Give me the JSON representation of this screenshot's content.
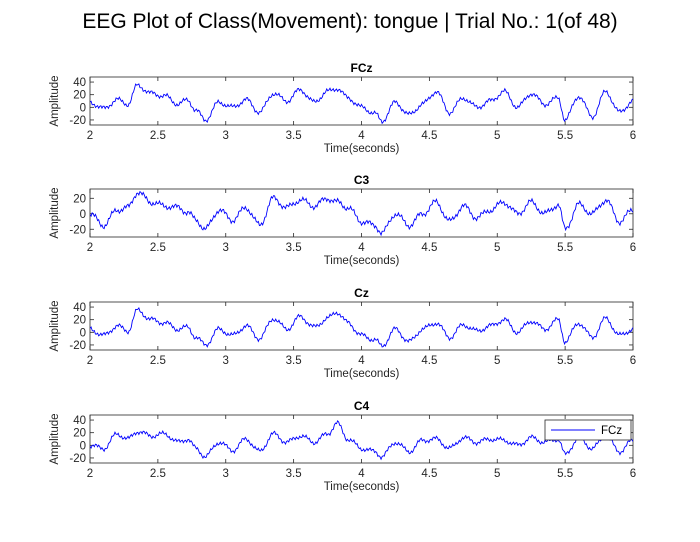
{
  "figure": {
    "title": "EEG Plot of Class(Movement): tongue | Trial No.: 1(of 48)"
  },
  "chart_data": [
    {
      "type": "line",
      "title": "FCz",
      "xlabel": "Time(seconds)",
      "ylabel": "Amplitude",
      "xlim": [
        2,
        6
      ],
      "ylim": [
        -28,
        48
      ],
      "xticks": [
        "2",
        "2.5",
        "3",
        "3.5",
        "4",
        "4.5",
        "5",
        "5.5",
        "6"
      ],
      "yticks": [
        "-20",
        "0",
        "20",
        "40"
      ],
      "series": [
        {
          "color": "#0000ff",
          "x": [
            2.0,
            2.1,
            2.2,
            2.28,
            2.35,
            2.45,
            2.55,
            2.65,
            2.72,
            2.78,
            2.85,
            2.95,
            3.05,
            3.15,
            3.25,
            3.35,
            3.45,
            3.55,
            3.65,
            3.75,
            3.82,
            3.9,
            4.0,
            4.1,
            4.15,
            4.25,
            4.35,
            4.45,
            4.55,
            4.65,
            4.75,
            4.85,
            4.95,
            5.05,
            5.15,
            5.25,
            5.35,
            5.45,
            5.5,
            5.6,
            5.7,
            5.8,
            5.9,
            6.0
          ],
          "y": [
            8,
            -2,
            12,
            5,
            35,
            22,
            18,
            5,
            12,
            -5,
            -20,
            8,
            0,
            12,
            -8,
            22,
            10,
            28,
            8,
            25,
            30,
            15,
            0,
            -10,
            -22,
            8,
            -12,
            5,
            25,
            -8,
            15,
            0,
            10,
            25,
            0,
            22,
            5,
            15,
            -20,
            18,
            -15,
            25,
            -8,
            10
          ]
        }
      ]
    },
    {
      "type": "line",
      "title": "C3",
      "xlabel": "Time(seconds)",
      "ylabel": "Amplitude",
      "xlim": [
        2,
        6
      ],
      "ylim": [
        -30,
        32
      ],
      "xticks": [
        "2",
        "2.5",
        "3",
        "3.5",
        "4",
        "4.5",
        "5",
        "5.5",
        "6"
      ],
      "yticks": [
        "-20",
        "0",
        "20"
      ],
      "series": [
        {
          "color": "#0000ff",
          "x": [
            2.0,
            2.1,
            2.2,
            2.28,
            2.35,
            2.45,
            2.55,
            2.65,
            2.72,
            2.78,
            2.85,
            2.95,
            3.05,
            3.15,
            3.25,
            3.35,
            3.45,
            3.55,
            3.65,
            3.75,
            3.82,
            3.9,
            4.0,
            4.1,
            4.15,
            4.25,
            4.35,
            4.45,
            4.55,
            4.65,
            4.75,
            4.85,
            4.95,
            5.05,
            5.15,
            5.25,
            5.35,
            5.45,
            5.5,
            5.6,
            5.7,
            5.8,
            5.9,
            6.0
          ],
          "y": [
            0,
            -15,
            5,
            8,
            28,
            15,
            10,
            8,
            2,
            -8,
            -20,
            5,
            -8,
            8,
            -15,
            20,
            8,
            18,
            10,
            20,
            15,
            8,
            -10,
            -15,
            -25,
            0,
            -15,
            0,
            15,
            -10,
            10,
            -5,
            5,
            15,
            0,
            15,
            0,
            12,
            -20,
            12,
            0,
            18,
            -10,
            5
          ]
        }
      ]
    },
    {
      "type": "line",
      "title": "Cz",
      "xlabel": "Time(seconds)",
      "ylabel": "Amplitude",
      "xlim": [
        2,
        6
      ],
      "ylim": [
        -28,
        48
      ],
      "xticks": [
        "2",
        "2.5",
        "3",
        "3.5",
        "4",
        "4.5",
        "5",
        "5.5",
        "6"
      ],
      "yticks": [
        "-20",
        "0",
        "20",
        "40"
      ],
      "series": [
        {
          "color": "#0000ff",
          "x": [
            2.0,
            2.1,
            2.2,
            2.28,
            2.35,
            2.45,
            2.55,
            2.65,
            2.72,
            2.78,
            2.85,
            2.95,
            3.05,
            3.15,
            3.25,
            3.35,
            3.45,
            3.55,
            3.65,
            3.75,
            3.82,
            3.9,
            4.0,
            4.1,
            4.15,
            4.25,
            4.35,
            4.45,
            4.55,
            4.65,
            4.75,
            4.85,
            4.95,
            5.05,
            5.15,
            5.25,
            5.35,
            5.45,
            5.5,
            5.6,
            5.7,
            5.8,
            5.9,
            6.0
          ],
          "y": [
            5,
            -5,
            10,
            2,
            35,
            20,
            15,
            5,
            8,
            -8,
            -20,
            5,
            -5,
            10,
            -10,
            22,
            5,
            25,
            8,
            22,
            32,
            15,
            -5,
            -12,
            -22,
            5,
            -15,
            5,
            15,
            -8,
            12,
            2,
            10,
            20,
            0,
            18,
            5,
            20,
            -15,
            15,
            -8,
            22,
            -5,
            5
          ]
        }
      ]
    },
    {
      "type": "line",
      "title": "C4",
      "xlabel": "Time(seconds)",
      "ylabel": "Amplitude",
      "xlim": [
        2,
        6
      ],
      "ylim": [
        -28,
        48
      ],
      "xticks": [
        "2",
        "2.5",
        "3",
        "3.5",
        "4",
        "4.5",
        "5",
        "5.5",
        "6"
      ],
      "yticks": [
        "-20",
        "0",
        "20",
        "40"
      ],
      "legend": {
        "position": "top-right",
        "entries": [
          "FCz"
        ]
      },
      "series": [
        {
          "name": "FCz",
          "color": "#0000ff",
          "x": [
            2.0,
            2.1,
            2.2,
            2.28,
            2.35,
            2.45,
            2.55,
            2.65,
            2.72,
            2.78,
            2.85,
            2.95,
            3.05,
            3.15,
            3.25,
            3.35,
            3.45,
            3.55,
            3.65,
            3.75,
            3.82,
            3.9,
            4.0,
            4.1,
            4.15,
            4.25,
            4.35,
            4.45,
            4.55,
            4.65,
            4.75,
            4.85,
            4.95,
            5.05,
            5.15,
            5.25,
            5.35,
            5.45,
            5.5,
            5.6,
            5.7,
            5.8,
            5.9,
            6.0
          ],
          "y": [
            0,
            -5,
            18,
            10,
            22,
            15,
            18,
            5,
            10,
            -5,
            -18,
            5,
            -8,
            10,
            -10,
            18,
            5,
            15,
            5,
            18,
            35,
            10,
            -5,
            -10,
            -18,
            5,
            -10,
            8,
            10,
            -5,
            12,
            5,
            10,
            8,
            0,
            12,
            5,
            10,
            -15,
            12,
            -5,
            15,
            -10,
            8
          ]
        }
      ]
    }
  ]
}
